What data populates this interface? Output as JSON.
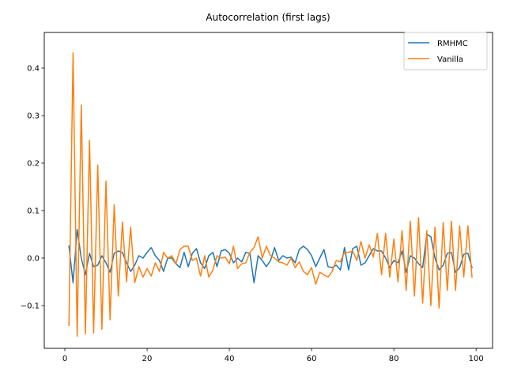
{
  "chart_data": {
    "type": "line",
    "title": "Autocorrelation (first lags)",
    "xlabel": "",
    "ylabel": "",
    "xlim": [
      -5,
      104
    ],
    "ylim": [
      -0.19,
      0.475
    ],
    "xticks": [
      0,
      20,
      40,
      60,
      80,
      100
    ],
    "xtick_labels": [
      "0",
      "20",
      "40",
      "60",
      "80",
      "100"
    ],
    "yticks": [
      -0.1,
      0.0,
      0.1,
      0.2,
      0.3,
      0.4
    ],
    "ytick_labels": [
      "−0.1",
      "0.0",
      "0.1",
      "0.2",
      "0.3",
      "0.4"
    ],
    "grid": false,
    "legend_position": "upper right",
    "series": [
      {
        "name": "RMHMC",
        "color": "#1f77b4",
        "x_start": 1,
        "values": [
          0.025,
          -0.052,
          0.06,
          0.0,
          -0.035,
          0.01,
          -0.018,
          -0.015,
          0.005,
          -0.01,
          -0.03,
          0.01,
          0.015,
          0.012,
          -0.01,
          -0.028,
          -0.015,
          0.005,
          0.0,
          0.012,
          0.022,
          0.005,
          -0.005,
          -0.028,
          0.0,
          0.0,
          -0.012,
          -0.02,
          0.012,
          -0.018,
          0.01,
          0.02,
          -0.01,
          -0.022,
          0.005,
          0.012,
          -0.018,
          0.015,
          0.018,
          0.01,
          -0.01,
          0.0,
          -0.008,
          0.012,
          0.01,
          -0.052,
          0.005,
          -0.005,
          -0.018,
          -0.005,
          0.022,
          -0.005,
          0.005,
          0.0,
          0.002,
          -0.01,
          0.018,
          0.025,
          0.018,
          0.005,
          -0.018,
          0.0,
          0.018,
          -0.018,
          -0.02,
          -0.015,
          -0.025,
          0.022,
          -0.025,
          0.02,
          0.025,
          -0.015,
          -0.01,
          0.005,
          0.02,
          0.015,
          0.015,
          0.0,
          -0.02,
          -0.005,
          -0.01,
          0.015,
          -0.03,
          0.005,
          0.0,
          -0.012,
          -0.02,
          0.05,
          0.045,
          0.0,
          -0.025,
          -0.015,
          0.01,
          0.012,
          -0.03,
          -0.02,
          0.008,
          0.01,
          -0.02
        ]
      },
      {
        "name": "Vanilla",
        "color": "#ff7f0e",
        "x_start": 1,
        "values": [
          -0.142,
          0.432,
          -0.165,
          0.322,
          -0.16,
          0.248,
          -0.158,
          0.196,
          -0.15,
          0.162,
          -0.13,
          0.112,
          -0.08,
          0.076,
          -0.05,
          0.065,
          -0.052,
          -0.018,
          -0.04,
          -0.022,
          -0.038,
          -0.01,
          -0.028,
          0.012,
          0.0,
          0.005,
          -0.012,
          0.018,
          0.025,
          0.025,
          -0.005,
          0.0,
          -0.038,
          0.005,
          -0.04,
          -0.025,
          0.005,
          0.0,
          0.002,
          -0.012,
          0.025,
          -0.022,
          -0.012,
          -0.01,
          0.012,
          0.022,
          0.045,
          0.0,
          0.025,
          0.005,
          0.0,
          -0.008,
          -0.01,
          -0.015,
          0.0,
          -0.02,
          -0.008,
          -0.028,
          -0.035,
          -0.02,
          -0.055,
          -0.03,
          -0.035,
          -0.04,
          -0.028,
          -0.005,
          -0.008,
          0.012,
          0.012,
          0.015,
          -0.005,
          0.035,
          0.0,
          0.028,
          0.002,
          0.052,
          -0.035,
          0.052,
          -0.04,
          0.04,
          -0.05,
          0.058,
          -0.068,
          0.078,
          -0.08,
          0.085,
          -0.095,
          0.058,
          -0.1,
          0.065,
          -0.105,
          0.075,
          -0.068,
          0.078,
          -0.068,
          0.068,
          -0.04,
          0.068,
          -0.04
        ]
      }
    ]
  }
}
